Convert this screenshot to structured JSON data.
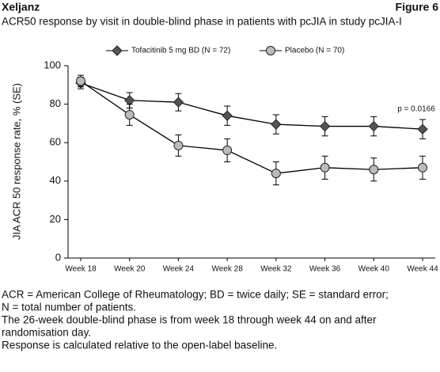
{
  "header": {
    "product": "Xeljanz",
    "figure": "Figure 6"
  },
  "chart_data": {
    "type": "line",
    "title": "ACR50 response by visit in double-blind phase in patients with pcJIA in study pcJIA-I",
    "y_label": "JIA ACR 50 response rate, % (SE)",
    "annotation": "p = 0.0166",
    "categories": [
      "Week 18",
      "Week 20",
      "Week 24",
      "Week 28",
      "Week 32",
      "Week 36",
      "Week 40",
      "Week 44"
    ],
    "series": [
      {
        "name": "Tofacitinib 5 mg BD (N = 72)",
        "color": "#555555",
        "marker": "diamond",
        "values": [
          91,
          82,
          81,
          74,
          69.5,
          68.5,
          68.5,
          67
        ],
        "errors": [
          3,
          4,
          4.5,
          5,
          5,
          5,
          5,
          5
        ]
      },
      {
        "name": "Placebo (N = 70)",
        "color": "#bbbbbb",
        "marker": "circle",
        "values": [
          92,
          74.5,
          58.5,
          56,
          44,
          47,
          46,
          47
        ],
        "errors": [
          3,
          5.5,
          5.5,
          6,
          6,
          6,
          6,
          6
        ]
      }
    ],
    "ylim": [
      0,
      100
    ],
    "yticks": [
      0,
      20,
      40,
      60,
      80,
      100
    ]
  },
  "footnotes": [
    "ACR = American College of Rheumatology; BD = twice daily; SE = standard error;",
    "N = total number of patients.",
    "The 26-week double-blind phase is from week 18 through week 44 on and after",
    "randomisation day.",
    "Response is calculated relative to the open-label baseline."
  ]
}
